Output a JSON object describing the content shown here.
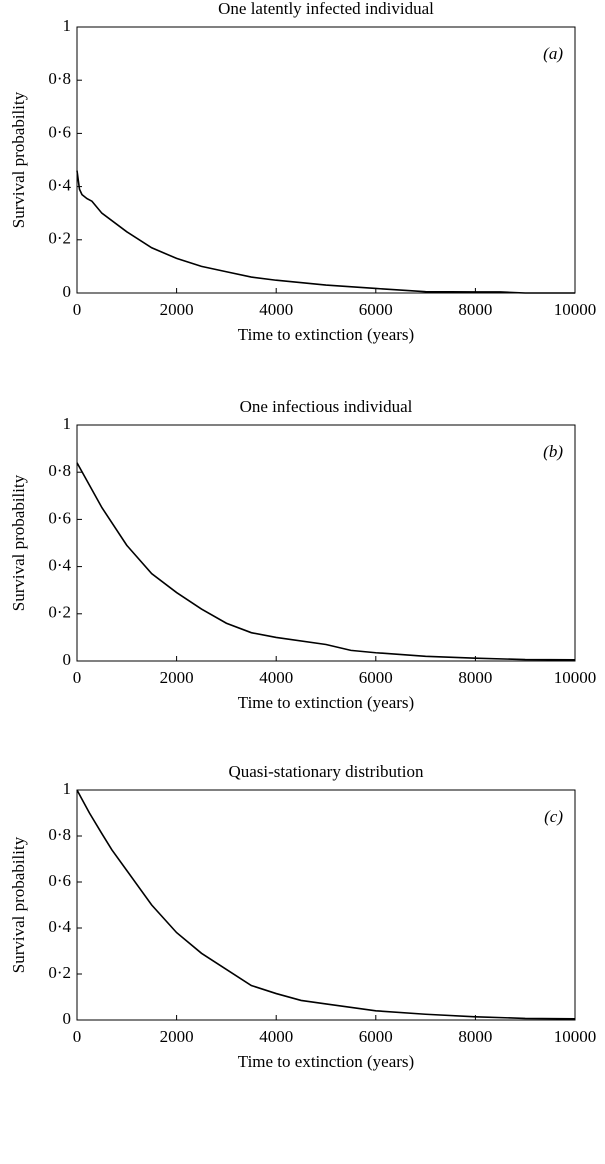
{
  "chart_data": [
    {
      "type": "line",
      "title": "One latently infected individual",
      "annotation": "(a)",
      "xlabel": "Time to extinction (years)",
      "ylabel": "Survival probability",
      "x": [
        0,
        50,
        100,
        200,
        300,
        500,
        1000,
        1500,
        2000,
        2500,
        3000,
        3500,
        4000,
        5000,
        6000,
        7000,
        8000,
        8500,
        9000,
        10000
      ],
      "values": [
        0.46,
        0.39,
        0.37,
        0.355,
        0.345,
        0.3,
        0.23,
        0.17,
        0.13,
        0.1,
        0.08,
        0.06,
        0.048,
        0.03,
        0.017,
        0.005,
        0.004,
        0.004,
        0,
        0
      ],
      "color": "#000000",
      "xlim": [
        0,
        10000
      ],
      "xticks": [
        0,
        2000,
        4000,
        6000,
        8000,
        10000
      ],
      "ylim": [
        0,
        1
      ],
      "yticks": [
        0,
        {
          "value": 0.2,
          "label": "0·2"
        },
        {
          "value": 0.4,
          "label": "0·4"
        },
        {
          "value": 0.6,
          "label": "0·6"
        },
        {
          "value": 0.8,
          "label": "0·8"
        },
        1
      ]
    },
    {
      "type": "line",
      "title": "One infectious individual",
      "annotation": "(b)",
      "xlabel": "Time to extinction (years)",
      "ylabel": "Survival probability",
      "x": [
        0,
        500,
        1000,
        1500,
        2000,
        2500,
        3000,
        3500,
        4000,
        5000,
        5500,
        6000,
        7000,
        8000,
        9000,
        10000
      ],
      "values": [
        0.84,
        0.65,
        0.49,
        0.37,
        0.29,
        0.22,
        0.16,
        0.12,
        0.1,
        0.07,
        0.045,
        0.035,
        0.02,
        0.012,
        0.006,
        0.005
      ],
      "color": "#000000",
      "xlim": [
        0,
        10000
      ],
      "xticks": [
        0,
        2000,
        4000,
        6000,
        8000,
        10000
      ],
      "ylim": [
        0,
        1
      ],
      "yticks": [
        0,
        {
          "value": 0.2,
          "label": "0·2"
        },
        {
          "value": 0.4,
          "label": "0·4"
        },
        {
          "value": 0.6,
          "label": "0·6"
        },
        {
          "value": 0.8,
          "label": "0·8"
        },
        1
      ]
    },
    {
      "type": "line",
      "title": "Quasi-stationary distribution",
      "annotation": "(c)",
      "xlabel": "Time to extinction (years)",
      "ylabel": "Survival probability",
      "x": [
        0,
        100,
        250,
        500,
        700,
        1000,
        1500,
        2000,
        2500,
        3000,
        3500,
        4000,
        4500,
        5000,
        6000,
        7000,
        8000,
        9000,
        10000
      ],
      "values": [
        1.0,
        0.96,
        0.9,
        0.81,
        0.74,
        0.65,
        0.5,
        0.38,
        0.29,
        0.22,
        0.15,
        0.115,
        0.085,
        0.07,
        0.04,
        0.025,
        0.014,
        0.007,
        0.005
      ],
      "color": "#000000",
      "xlim": [
        0,
        10000
      ],
      "xticks": [
        0,
        2000,
        4000,
        6000,
        8000,
        10000
      ],
      "ylim": [
        0,
        1
      ],
      "yticks": [
        0,
        {
          "value": 0.2,
          "label": "0·2"
        },
        {
          "value": 0.4,
          "label": "0·4"
        },
        {
          "value": 0.6,
          "label": "0·6"
        },
        {
          "value": 0.8,
          "label": "0·8"
        },
        1
      ]
    }
  ]
}
